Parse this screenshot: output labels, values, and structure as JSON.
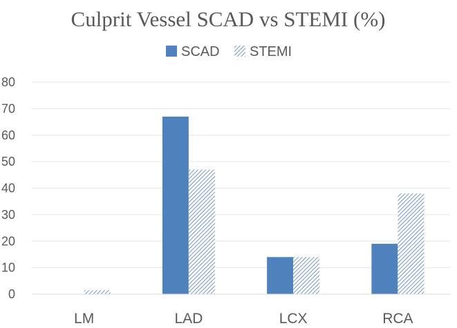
{
  "chart_data": {
    "type": "bar",
    "title": "Culprit Vessel SCAD vs STEMI (%)",
    "categories": [
      "LM",
      "LAD",
      "LCX",
      "RCA"
    ],
    "series": [
      {
        "name": "SCAD",
        "values": [
          0,
          67,
          14,
          19
        ],
        "color": "#4f81bd",
        "pattern": "solid"
      },
      {
        "name": "STEMI",
        "values": [
          1.5,
          47,
          14,
          38
        ],
        "color": "#4f81bd",
        "pattern": "diagonal-hatch"
      }
    ],
    "ylim": [
      0,
      80
    ],
    "yticks": [
      "0",
      "10",
      "20",
      "30",
      "40",
      "50",
      "60",
      "70",
      "80"
    ],
    "grid": true,
    "legend_position": "top"
  }
}
